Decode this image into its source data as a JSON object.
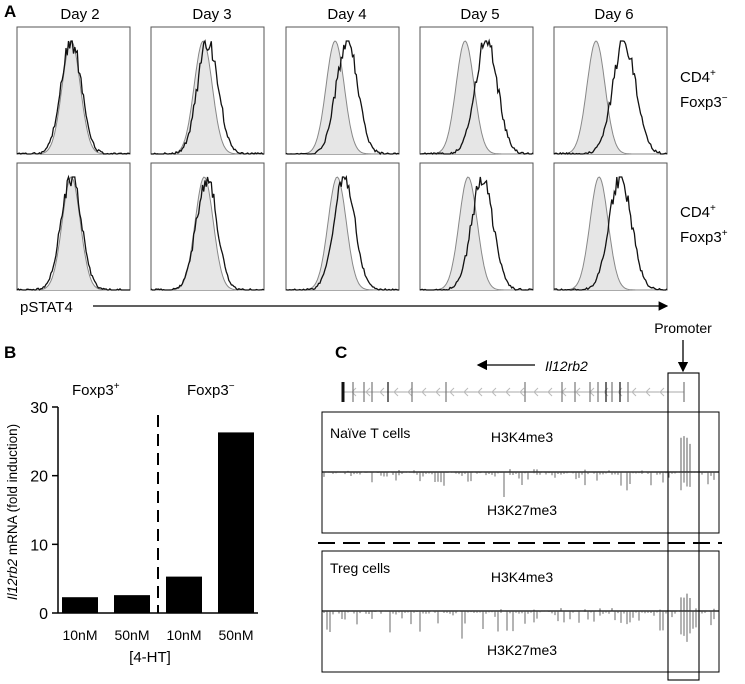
{
  "panel_a": {
    "letter": "A",
    "days": [
      "Day 2",
      "Day 3",
      "Day 4",
      "Day 5",
      "Day 6"
    ],
    "rows": [
      {
        "label_line1": "CD4",
        "label_line1_sup": "+",
        "label_line2": "Foxp3",
        "label_line2_sup": "−"
      },
      {
        "label_line1": "CD4",
        "label_line1_sup": "+",
        "label_line2": "Foxp3",
        "label_line2_sup": "+"
      }
    ],
    "x_axis_label": "pSTAT4",
    "peak_separation": [
      [
        0.0,
        0.1,
        0.25,
        0.45,
        0.6
      ],
      [
        0.0,
        0.05,
        0.15,
        0.3,
        0.45
      ]
    ]
  },
  "panel_b": {
    "letter": "B",
    "group_left": "Foxp3",
    "group_left_sup": "+",
    "group_right": "Foxp3",
    "group_right_sup": "−",
    "ylabel_italic": "Il12rb2",
    "ylabel_rest": " mRNA (fold induction)",
    "xlabel": "[4-HT]"
  },
  "chart_data": {
    "type": "bar",
    "categories": [
      "10nM",
      "50nM",
      "10nM",
      "50nM"
    ],
    "values": [
      2.3,
      2.6,
      5.3,
      26.3
    ],
    "ylim": [
      0,
      30
    ],
    "yticks": [
      0,
      10,
      20,
      30
    ],
    "bar_color": "#000000"
  },
  "panel_c": {
    "letter": "C",
    "promoter_label": "Promoter",
    "gene_name": "Il12rb2",
    "naive_label": "Naïve T cells",
    "treg_label": "Treg cells",
    "h3k4_label": "H3K4me3",
    "h3k27_label": "H3K27me3"
  }
}
